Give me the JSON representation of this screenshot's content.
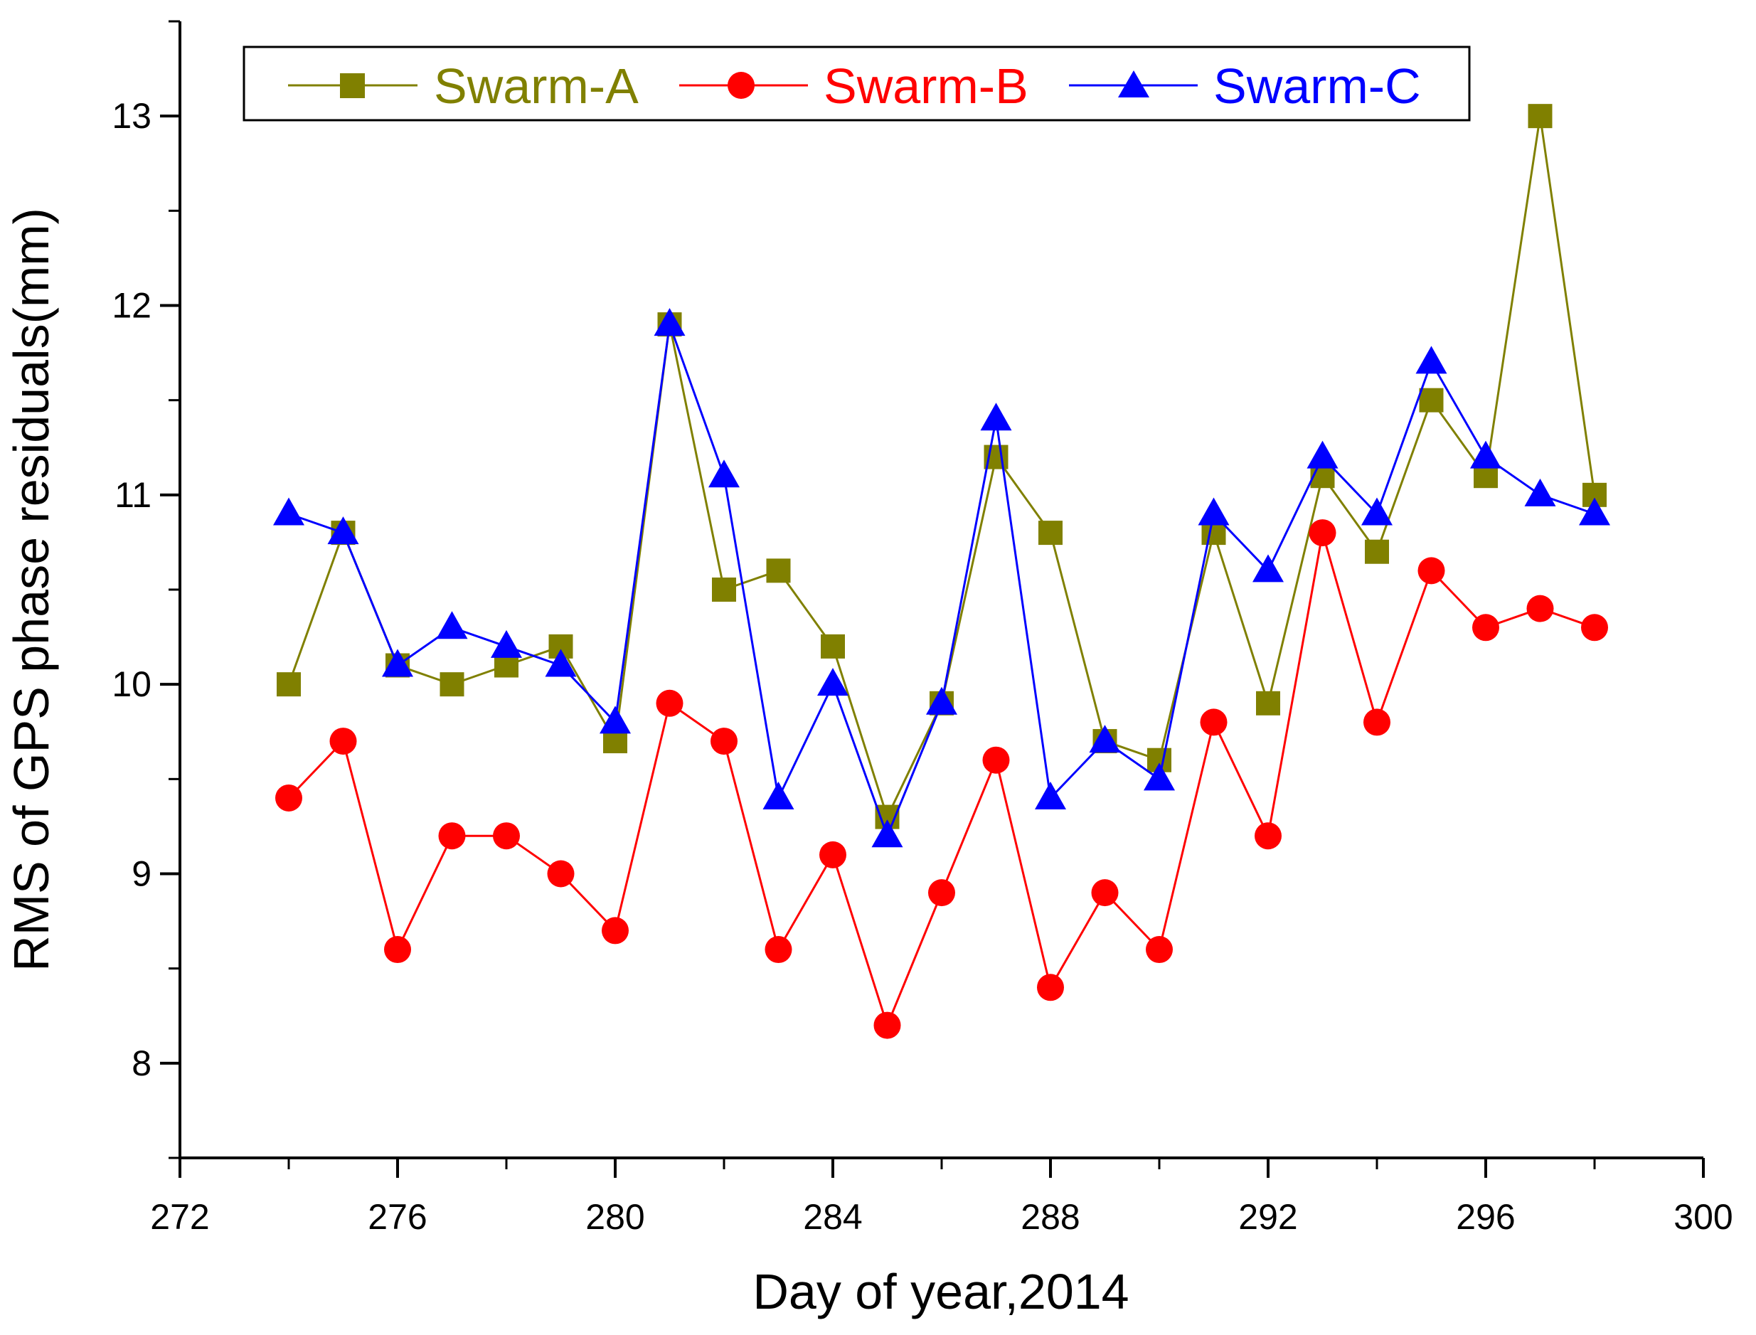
{
  "chart_data": {
    "type": "line",
    "title": "",
    "xlabel": "Day of year,2014",
    "ylabel": "RMS of GPS phase residuals(mm)",
    "xlim": [
      272,
      300
    ],
    "ylim": [
      7.5,
      13.5
    ],
    "x_ticks": [
      272,
      276,
      280,
      284,
      288,
      292,
      296,
      300
    ],
    "x_tick_labels": [
      "272",
      "276",
      "280",
      "284",
      "288",
      "292",
      "296",
      "300"
    ],
    "y_ticks": [
      8,
      9,
      10,
      11,
      12,
      13
    ],
    "y_tick_labels": [
      "8",
      "9",
      "10",
      "11",
      "12",
      "13"
    ],
    "grid": false,
    "legend_position": "top",
    "x": [
      274,
      275,
      276,
      277,
      278,
      279,
      280,
      281,
      282,
      283,
      284,
      285,
      286,
      287,
      288,
      289,
      290,
      291,
      292,
      293,
      294,
      295,
      296,
      297,
      298
    ],
    "series": [
      {
        "name": "Swarm-A",
        "color": "#808000",
        "marker": "square",
        "values": [
          10.0,
          10.8,
          10.1,
          10.0,
          10.1,
          10.2,
          9.7,
          11.9,
          10.5,
          10.6,
          10.2,
          9.3,
          9.9,
          11.2,
          10.8,
          9.7,
          9.6,
          10.8,
          9.9,
          11.1,
          10.7,
          11.5,
          11.1,
          13.0,
          11.0
        ]
      },
      {
        "name": "Swarm-B",
        "color": "#ff0000",
        "marker": "circle",
        "values": [
          9.4,
          9.7,
          8.6,
          9.2,
          9.2,
          9.0,
          8.7,
          9.9,
          9.7,
          8.6,
          9.1,
          8.2,
          8.9,
          9.6,
          8.4,
          8.9,
          8.6,
          9.8,
          9.2,
          10.8,
          9.8,
          10.6,
          10.3,
          10.4,
          10.3
        ]
      },
      {
        "name": "Swarm-C",
        "color": "#0000ff",
        "marker": "triangle",
        "values": [
          10.9,
          10.8,
          10.1,
          10.3,
          10.2,
          10.1,
          9.8,
          11.9,
          11.1,
          9.4,
          10.0,
          9.2,
          9.9,
          11.4,
          9.4,
          9.7,
          9.5,
          10.9,
          10.6,
          11.2,
          10.9,
          11.7,
          11.2,
          11.0,
          10.9
        ]
      }
    ]
  }
}
